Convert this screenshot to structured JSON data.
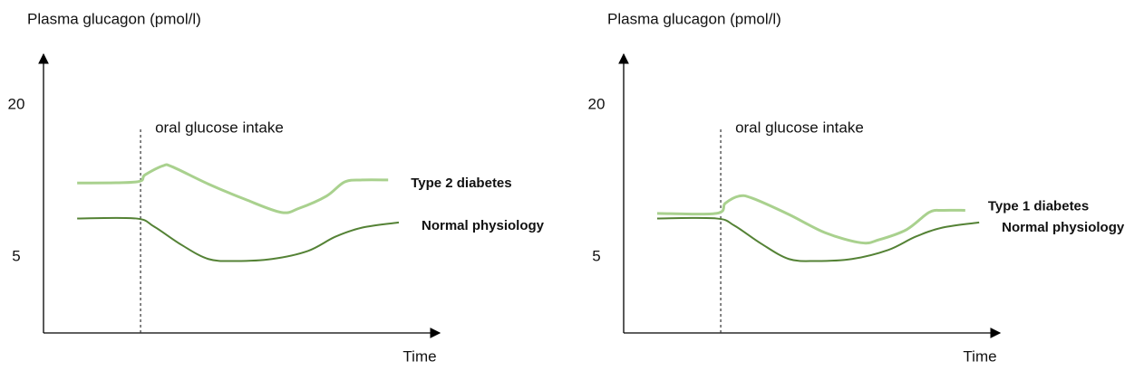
{
  "chart_data": [
    {
      "type": "line",
      "ylabel": "Plasma glucagon (pmol/l)",
      "xlabel": "Time",
      "xlim": [
        0,
        100
      ],
      "ylim": [
        -2.5,
        25
      ],
      "yticks": [
        5,
        20
      ],
      "grid": false,
      "annotation": {
        "x": 24.5,
        "label": "oral glucose intake"
      },
      "series": [
        {
          "name": "Type 2 diabetes",
          "color": "#a9d18e",
          "x": [
            8.5,
            23.3,
            25.6,
            30.2,
            32.5,
            41.6,
            50.8,
            60.0,
            64.5,
            71.4,
            76.0,
            80.5,
            87.0
          ],
          "values": [
            12.3,
            12.4,
            13.1,
            14.0,
            13.9,
            12.2,
            10.7,
            9.4,
            9.8,
            11.0,
            12.4,
            12.6,
            12.6
          ]
        },
        {
          "name": "Normal physiology",
          "color": "#548235",
          "x": [
            8.5,
            23.3,
            27.9,
            34.8,
            41.6,
            48.5,
            57.7,
            66.8,
            73.7,
            80.5,
            89.7
          ],
          "values": [
            8.8,
            8.8,
            8.0,
            6.2,
            4.8,
            4.6,
            4.8,
            5.6,
            7.0,
            7.9,
            8.4
          ]
        }
      ]
    },
    {
      "type": "line",
      "ylabel": "Plasma glucagon (pmol/l)",
      "xlabel": "Time",
      "xlim": [
        0,
        100
      ],
      "ylim": [
        -2.5,
        25
      ],
      "yticks": [
        5,
        20
      ],
      "grid": false,
      "annotation": {
        "x": 25.8,
        "label": "oral glucose intake"
      },
      "series": [
        {
          "name": "Type 1 diabetes",
          "color": "#a9d18e",
          "x": [
            8.9,
            24.6,
            27.0,
            30.6,
            34.2,
            43.9,
            53.5,
            63.1,
            67.9,
            75.2,
            81.2,
            84.8,
            90.8
          ],
          "values": [
            9.3,
            9.3,
            10.3,
            11.0,
            10.8,
            9.2,
            7.4,
            6.4,
            6.7,
            7.7,
            9.4,
            9.6,
            9.6
          ]
        },
        {
          "name": "Normal physiology",
          "color": "#548235",
          "x": [
            8.9,
            24.6,
            29.4,
            36.6,
            43.9,
            51.1,
            60.7,
            70.4,
            77.6,
            84.8,
            94.5
          ],
          "values": [
            8.8,
            8.8,
            8.1,
            6.3,
            4.8,
            4.6,
            4.8,
            5.7,
            7.0,
            7.9,
            8.4
          ]
        }
      ]
    }
  ]
}
